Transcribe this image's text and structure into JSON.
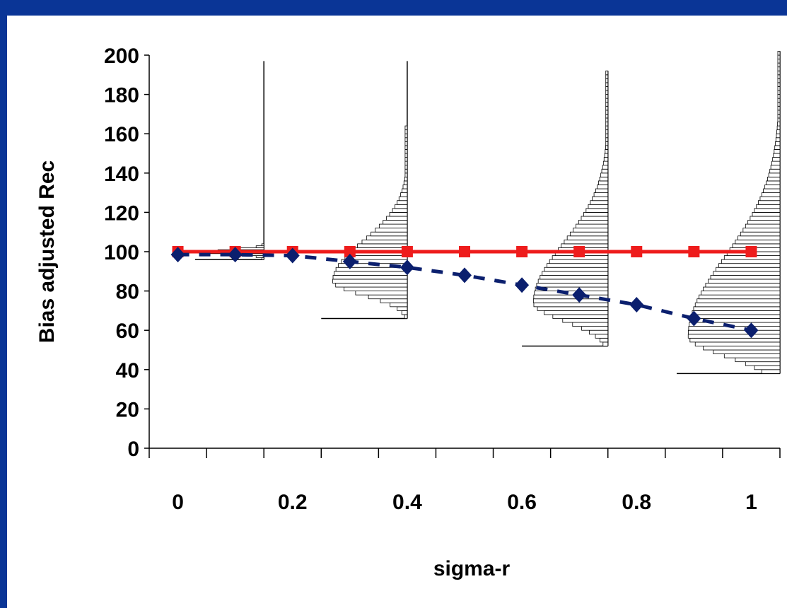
{
  "chart_data": {
    "type": "line",
    "title": "",
    "xlabel": "sigma-r",
    "ylabel": "Bias adjusted Rec",
    "ylim": [
      0,
      200
    ],
    "yticks": [
      0,
      20,
      40,
      60,
      80,
      100,
      120,
      140,
      160,
      180,
      200
    ],
    "xtick_labels": [
      "0",
      "0.2",
      "0.4",
      "0.6",
      "0.8",
      "1"
    ],
    "grid": false,
    "legend": "none",
    "x": [
      0,
      0.1,
      0.2,
      0.3,
      0.4,
      0.5,
      0.6,
      0.7,
      0.8,
      0.9,
      1.0
    ],
    "series": [
      {
        "color": "#ee1c1c",
        "marker": "square",
        "line_style": "solid",
        "values": [
          100,
          100,
          100,
          100,
          100,
          100,
          100,
          100,
          100,
          100,
          100
        ]
      },
      {
        "color": "#0b1f6e",
        "marker": "diamond",
        "line_style": "dashed",
        "values": [
          98.5,
          98.5,
          98,
          95,
          92,
          88,
          83,
          78,
          73,
          66,
          60
        ]
      }
    ],
    "distributions": [
      {
        "sigma": 0.1,
        "x_base": 0.15,
        "y_min": 96,
        "y_max": 104,
        "mode": 99.5,
        "sd_low": 1,
        "sd_high": 1.5,
        "y_top": 197,
        "x_start": 0.03
      },
      {
        "sigma": 0.3,
        "x_base": 0.4,
        "y_min": 66,
        "y_max": 164,
        "mode": 85,
        "sd_low": 7,
        "sd_high": 20,
        "y_top": 197,
        "x_start": 0.25
      },
      {
        "sigma": 0.6,
        "x_base": 0.75,
        "y_min": 52,
        "y_max": 192,
        "mode": 74,
        "sd_low": 9,
        "sd_high": 30,
        "y_top": 192,
        "x_start": 0.6
      },
      {
        "sigma": 1.0,
        "x_base": 1.05,
        "y_min": 38,
        "y_max": 202,
        "mode": 57,
        "sd_low": 10,
        "sd_high": 40,
        "y_top": 202,
        "x_start": 0.87
      }
    ]
  }
}
